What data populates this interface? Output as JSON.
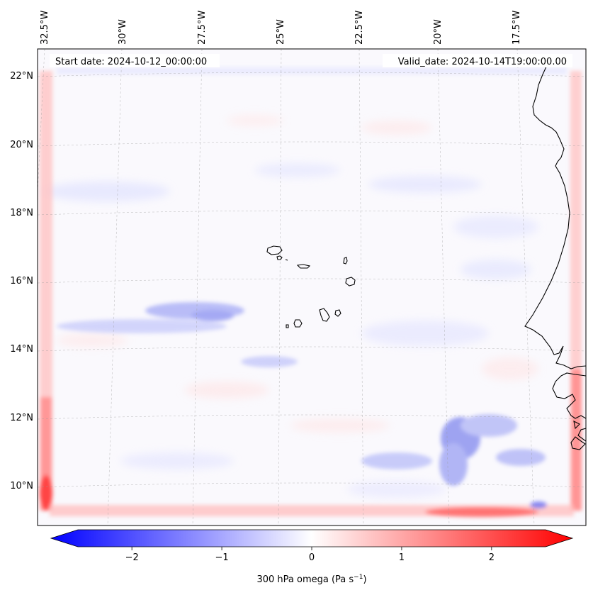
{
  "header": {
    "start_date": "Start date: 2024-10-12_00:00:00",
    "valid_date": "Valid_date: 2024-10-14T19:00:00.00"
  },
  "map": {
    "lon_labels": [
      "32.5°W",
      "30°W",
      "27.5°W",
      "25°W",
      "22.5°W",
      "20°W",
      "17.5°W"
    ],
    "lat_labels": [
      "22°N",
      "20°N",
      "18°N",
      "16°N",
      "14°N",
      "12°N",
      "10°N"
    ],
    "field_colors": {
      "negative": "#0000ff",
      "zero": "#ffffff",
      "positive": "#ff0000",
      "coast": "#000000",
      "grid": "#9a9a9a"
    }
  },
  "colorbar": {
    "ticks": [
      "−2",
      "−1",
      "0",
      "1",
      "2"
    ],
    "tick_values": [
      -2,
      -1,
      0,
      1,
      2
    ],
    "range": [
      -2.6,
      2.6
    ],
    "label_prefix": "300 hPa omega (Pa s",
    "label_exp": "−1",
    "label_suffix": ")"
  }
}
